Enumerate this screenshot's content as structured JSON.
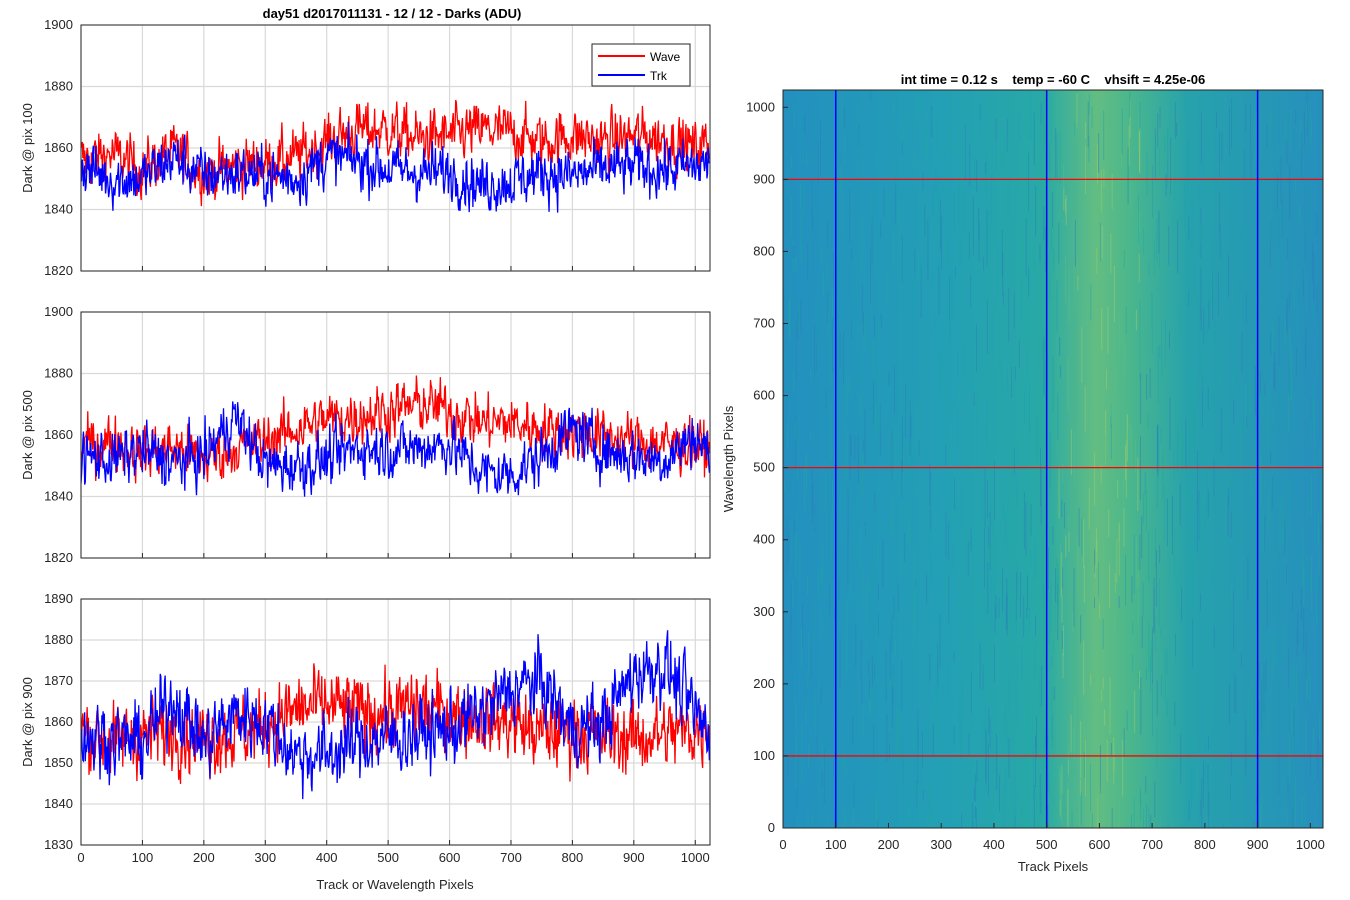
{
  "chart_data": [
    {
      "type": "line",
      "title": "day51 d2017011131 - 12 / 12 - Darks (ADU)",
      "xlabel": "",
      "ylabel": "Dark @ pix 100",
      "xlim": [
        0,
        1024
      ],
      "ylim": [
        1820,
        1900
      ],
      "xticks": [
        "0",
        "100",
        "200",
        "300",
        "400",
        "500",
        "600",
        "700",
        "800",
        "900",
        "1000"
      ],
      "yticks": [
        "1820",
        "1840",
        "1860",
        "1880",
        "1900"
      ],
      "grid": true,
      "legend": {
        "position": "top-right",
        "entries": [
          "Wave",
          "Trk"
        ]
      },
      "series": [
        {
          "name": "Wave",
          "color": "#ff0000",
          "x": [
            0,
            50,
            100,
            150,
            200,
            250,
            300,
            350,
            400,
            450,
            500,
            550,
            600,
            650,
            700,
            750,
            800,
            850,
            900,
            950,
            1000,
            1023
          ],
          "values": [
            1856,
            1858,
            1853,
            1859,
            1852,
            1854,
            1855,
            1857,
            1862,
            1866,
            1866,
            1863,
            1864,
            1866,
            1865,
            1862,
            1864,
            1862,
            1864,
            1863,
            1860,
            1862
          ]
        },
        {
          "name": "Trk",
          "color": "#0000ff",
          "x": [
            0,
            50,
            100,
            150,
            200,
            250,
            300,
            350,
            400,
            450,
            500,
            550,
            600,
            650,
            700,
            750,
            800,
            850,
            900,
            950,
            1000,
            1023
          ],
          "values": [
            1854,
            1850,
            1850,
            1857,
            1851,
            1852,
            1851,
            1850,
            1857,
            1856,
            1853,
            1852,
            1852,
            1848,
            1849,
            1852,
            1851,
            1853,
            1854,
            1853,
            1854,
            1855
          ]
        }
      ]
    },
    {
      "type": "line",
      "title": "",
      "xlabel": "",
      "ylabel": "Dark @ pix 500",
      "xlim": [
        0,
        1024
      ],
      "ylim": [
        1820,
        1900
      ],
      "xticks": [
        "0",
        "100",
        "200",
        "300",
        "400",
        "500",
        "600",
        "700",
        "800",
        "900",
        "1000"
      ],
      "yticks": [
        "1820",
        "1840",
        "1860",
        "1880",
        "1900"
      ],
      "grid": true,
      "series": [
        {
          "name": "Wave",
          "color": "#ff0000",
          "x": [
            0,
            50,
            100,
            150,
            200,
            250,
            300,
            350,
            400,
            450,
            500,
            550,
            600,
            650,
            700,
            750,
            800,
            850,
            900,
            950,
            1000,
            1023
          ],
          "values": [
            1856,
            1858,
            1854,
            1856,
            1852,
            1856,
            1858,
            1862,
            1865,
            1866,
            1868,
            1870,
            1868,
            1864,
            1864,
            1862,
            1861,
            1860,
            1858,
            1857,
            1856,
            1855
          ]
        },
        {
          "name": "Trk",
          "color": "#0000ff",
          "x": [
            0,
            50,
            100,
            150,
            200,
            250,
            300,
            350,
            400,
            450,
            500,
            550,
            600,
            650,
            700,
            750,
            800,
            850,
            900,
            950,
            1000,
            1023
          ],
          "values": [
            1853,
            1852,
            1855,
            1851,
            1853,
            1866,
            1850,
            1850,
            1852,
            1856,
            1855,
            1856,
            1857,
            1848,
            1847,
            1853,
            1862,
            1855,
            1853,
            1852,
            1860,
            1853
          ]
        }
      ]
    },
    {
      "type": "line",
      "title": "",
      "xlabel": "Track or Wavelength Pixels",
      "ylabel": "Dark @ pix 900",
      "xlim": [
        0,
        1024
      ],
      "ylim": [
        1830,
        1890
      ],
      "xticks": [
        "0",
        "100",
        "200",
        "300",
        "400",
        "500",
        "600",
        "700",
        "800",
        "900",
        "1000"
      ],
      "yticks": [
        "1830",
        "1840",
        "1850",
        "1860",
        "1870",
        "1880",
        "1890"
      ],
      "grid": true,
      "series": [
        {
          "name": "Wave",
          "color": "#ff0000",
          "x": [
            0,
            50,
            100,
            150,
            200,
            250,
            300,
            350,
            400,
            450,
            500,
            550,
            600,
            650,
            700,
            750,
            800,
            850,
            900,
            950,
            1000,
            1023
          ],
          "values": [
            1858,
            1855,
            1857,
            1858,
            1856,
            1857,
            1859,
            1863,
            1864,
            1863,
            1862,
            1864,
            1862,
            1861,
            1860,
            1857,
            1858,
            1857,
            1856,
            1857,
            1858,
            1860
          ]
        },
        {
          "name": "Trk",
          "color": "#0000ff",
          "x": [
            0,
            50,
            100,
            150,
            200,
            250,
            300,
            350,
            400,
            450,
            500,
            550,
            600,
            650,
            700,
            750,
            800,
            850,
            900,
            950,
            1000,
            1023
          ],
          "values": [
            1857,
            1856,
            1855,
            1866,
            1855,
            1862,
            1860,
            1852,
            1852,
            1855,
            1856,
            1857,
            1858,
            1862,
            1868,
            1870,
            1858,
            1860,
            1872,
            1874,
            1862,
            1857
          ]
        }
      ]
    },
    {
      "type": "heatmap",
      "title": "int time = 0.12 s    temp = -60 C    vhsift = 4.25e-06",
      "xlabel": "Track Pixels",
      "ylabel": "Wavelength Pixels",
      "xlim": [
        0,
        1024
      ],
      "ylim": [
        0,
        1024
      ],
      "xticks": [
        "0",
        "100",
        "200",
        "300",
        "400",
        "500",
        "600",
        "700",
        "800",
        "900",
        "1000"
      ],
      "yticks": [
        "0",
        "100",
        "200",
        "300",
        "400",
        "500",
        "600",
        "700",
        "800",
        "900",
        "1000"
      ],
      "grid": false,
      "colormap": [
        "#2a7fb8",
        "#1f9fb0",
        "#21a99f",
        "#5cbf84",
        "#9fcc6a"
      ],
      "bright_band": {
        "x_center": 600,
        "x_width": 80
      },
      "marker_lines": {
        "vertical": {
          "color": "#0000ff",
          "x": [
            100,
            500,
            900
          ]
        },
        "horizontal": {
          "color": "#ff0000",
          "y": [
            100,
            500,
            900
          ]
        }
      }
    }
  ]
}
